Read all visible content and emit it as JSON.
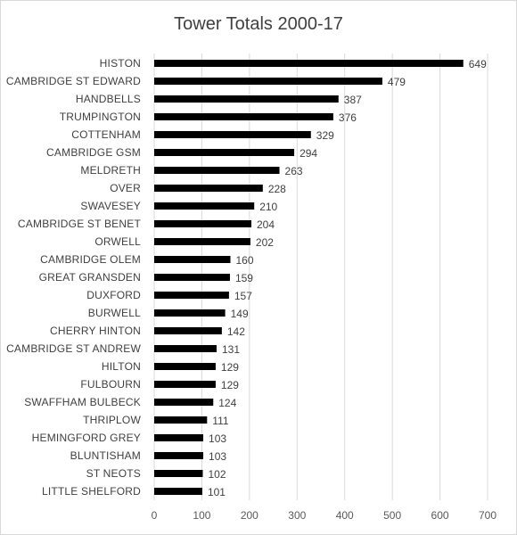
{
  "chart_data": {
    "type": "bar",
    "orientation": "horizontal",
    "title": "Tower Totals 2000-17",
    "xlabel": "",
    "ylabel": "",
    "xlim": [
      0,
      700
    ],
    "x_ticks": [
      0,
      100,
      200,
      300,
      400,
      500,
      600,
      700
    ],
    "grid": true,
    "legend": "none",
    "bar_color": "#000000",
    "gridline_color": "#d9d9d9",
    "categories": [
      "HISTON",
      "CAMBRIDGE ST EDWARD",
      "HANDBELLS",
      "TRUMPINGTON",
      "COTTENHAM",
      "CAMBRIDGE GSM",
      "MELDRETH",
      "OVER",
      "SWAVESEY",
      "CAMBRIDGE ST BENET",
      "ORWELL",
      "CAMBRIDGE OLEM",
      "GREAT GRANSDEN",
      "DUXFORD",
      "BURWELL",
      "CHERRY HINTON",
      "CAMBRIDGE ST ANDREW",
      "HILTON",
      "FULBOURN",
      "SWAFFHAM BULBECK",
      "THRIPLOW",
      "HEMINGFORD GREY",
      "BLUNTISHAM",
      "ST NEOTS",
      "LITTLE SHELFORD"
    ],
    "values": [
      649,
      479,
      387,
      376,
      329,
      294,
      263,
      228,
      210,
      204,
      202,
      160,
      159,
      157,
      149,
      142,
      131,
      129,
      129,
      124,
      111,
      103,
      103,
      102,
      101
    ]
  }
}
